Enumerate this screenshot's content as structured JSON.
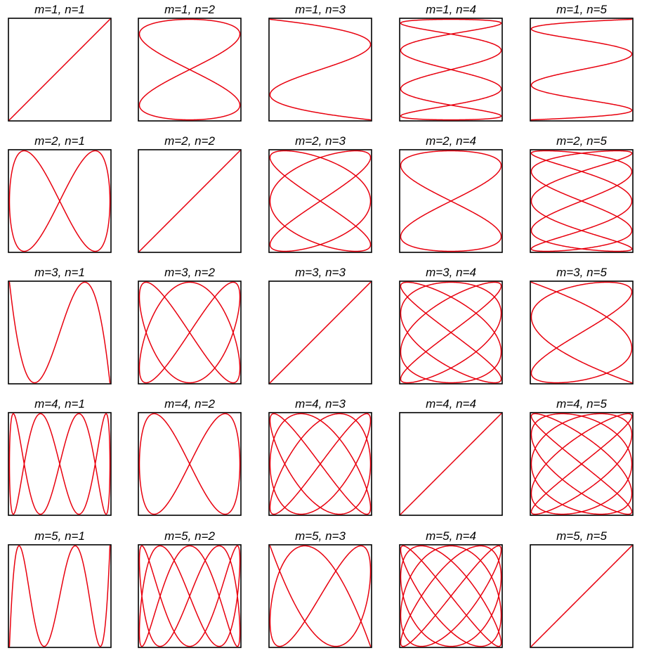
{
  "line_color": "#e8000e",
  "frame_color": "#000000",
  "panels": [
    {
      "title": "m=1, n=1",
      "m": 1,
      "n": 1
    },
    {
      "title": "m=1, n=2",
      "m": 1,
      "n": 2
    },
    {
      "title": "m=1, n=3",
      "m": 1,
      "n": 3
    },
    {
      "title": "m=1, n=4",
      "m": 1,
      "n": 4
    },
    {
      "title": "m=1, n=5",
      "m": 1,
      "n": 5
    },
    {
      "title": "m=2, n=1",
      "m": 2,
      "n": 1
    },
    {
      "title": "m=2, n=2",
      "m": 2,
      "n": 2
    },
    {
      "title": "m=2, n=3",
      "m": 2,
      "n": 3
    },
    {
      "title": "m=2, n=4",
      "m": 2,
      "n": 4
    },
    {
      "title": "m=2, n=5",
      "m": 2,
      "n": 5
    },
    {
      "title": "m=3, n=1",
      "m": 3,
      "n": 1
    },
    {
      "title": "m=3, n=2",
      "m": 3,
      "n": 2
    },
    {
      "title": "m=3, n=3",
      "m": 3,
      "n": 3
    },
    {
      "title": "m=3, n=4",
      "m": 3,
      "n": 4
    },
    {
      "title": "m=3, n=5",
      "m": 3,
      "n": 5
    },
    {
      "title": "m=4, n=1",
      "m": 4,
      "n": 1
    },
    {
      "title": "m=4, n=2",
      "m": 4,
      "n": 2
    },
    {
      "title": "m=4, n=3",
      "m": 4,
      "n": 3
    },
    {
      "title": "m=4, n=4",
      "m": 4,
      "n": 4
    },
    {
      "title": "m=4, n=5",
      "m": 4,
      "n": 5
    },
    {
      "title": "m=5, n=1",
      "m": 5,
      "n": 1
    },
    {
      "title": "m=5, n=2",
      "m": 5,
      "n": 2
    },
    {
      "title": "m=5, n=3",
      "m": 5,
      "n": 3
    },
    {
      "title": "m=5, n=4",
      "m": 5,
      "n": 4
    },
    {
      "title": "m=5, n=5",
      "m": 5,
      "n": 5
    }
  ]
}
